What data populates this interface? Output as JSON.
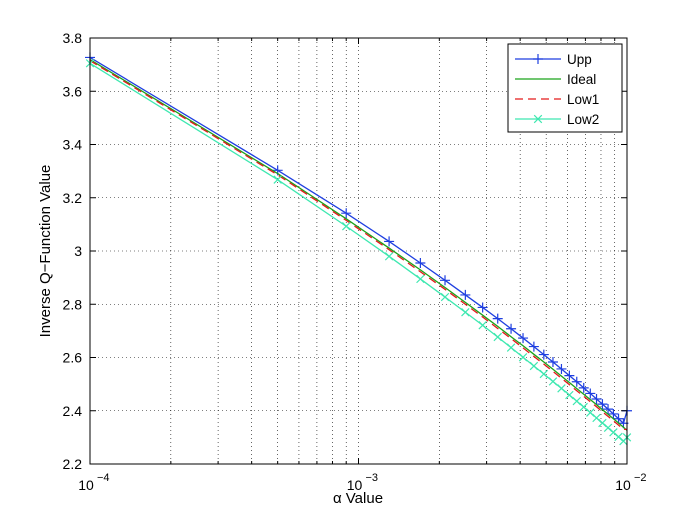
{
  "chart_data": {
    "type": "line",
    "xlabel": "α Value",
    "ylabel": "Inverse Q−Function Value",
    "x_scale": "log",
    "xlim": [
      0.0001,
      0.01
    ],
    "ylim": [
      2.2,
      3.8
    ],
    "grid": true,
    "legend_position": "top-right",
    "x_ticks": [
      {
        "value": 0.0001,
        "base": "10",
        "exp": "−4"
      },
      {
        "value": 0.001,
        "base": "10",
        "exp": "−3"
      },
      {
        "value": 0.01,
        "base": "10",
        "exp": "−2"
      }
    ],
    "y_ticks": [
      {
        "value": 2.2,
        "label": "2.2"
      },
      {
        "value": 2.4,
        "label": "2.4"
      },
      {
        "value": 2.6,
        "label": "2.6"
      },
      {
        "value": 2.8,
        "label": "2.8"
      },
      {
        "value": 3.0,
        "label": "3"
      },
      {
        "value": 3.2,
        "label": "3.2"
      },
      {
        "value": 3.4,
        "label": "3.4"
      },
      {
        "value": 3.6,
        "label": "3.6"
      },
      {
        "value": 3.8,
        "label": "3.8"
      }
    ],
    "series": [
      {
        "name": "Upp",
        "color": "#1f3fe0",
        "line_style": "solid",
        "marker": "plus",
        "x": [
          0.0001,
          0.0005,
          0.0009,
          0.0013,
          0.0017,
          0.0021,
          0.0025,
          0.0029,
          0.0033,
          0.0037,
          0.0041,
          0.0045,
          0.0049,
          0.0053,
          0.0057,
          0.0061,
          0.0065,
          0.0069,
          0.0073,
          0.0077,
          0.0081,
          0.0085,
          0.0089,
          0.0093,
          0.0097,
          0.01
        ],
        "y": [
          3.727,
          3.303,
          3.142,
          3.036,
          2.955,
          2.89,
          2.835,
          2.788,
          2.746,
          2.708,
          2.673,
          2.641,
          2.611,
          2.583,
          2.557,
          2.532,
          2.509,
          2.486,
          2.465,
          2.444,
          2.425,
          2.406,
          2.388,
          2.37,
          2.353,
          2.4
        ]
      },
      {
        "name": "Ideal",
        "color": "#1aa31a",
        "line_style": "solid",
        "marker": "none",
        "x": [
          0.0001,
          0.0005,
          0.0009,
          0.0013,
          0.0017,
          0.0021,
          0.0025,
          0.0029,
          0.0033,
          0.0037,
          0.0041,
          0.0045,
          0.0049,
          0.0053,
          0.0057,
          0.0061,
          0.0065,
          0.0069,
          0.0073,
          0.0077,
          0.0081,
          0.0085,
          0.0089,
          0.0093,
          0.0097,
          0.01
        ],
        "y": [
          3.719,
          3.291,
          3.121,
          3.011,
          2.929,
          2.863,
          2.807,
          2.759,
          2.717,
          2.678,
          2.644,
          2.612,
          2.583,
          2.556,
          2.53,
          2.506,
          2.483,
          2.462,
          2.442,
          2.423,
          2.404,
          2.387,
          2.37,
          2.354,
          2.338,
          2.326
        ]
      },
      {
        "name": "Low1",
        "color": "#e41a1a",
        "line_style": "dashed",
        "marker": "none",
        "x": [
          0.0001,
          0.0005,
          0.0009,
          0.0013,
          0.0017,
          0.0021,
          0.0025,
          0.0029,
          0.0033,
          0.0037,
          0.0041,
          0.0045,
          0.0049,
          0.0053,
          0.0057,
          0.0061,
          0.0065,
          0.0069,
          0.0073,
          0.0077,
          0.0081,
          0.0085,
          0.0089,
          0.0093,
          0.0097,
          0.01
        ],
        "y": [
          3.715,
          3.286,
          3.115,
          3.005,
          2.922,
          2.856,
          2.8,
          2.752,
          2.709,
          2.671,
          2.636,
          2.604,
          2.575,
          2.548,
          2.522,
          2.498,
          2.475,
          2.454,
          2.434,
          2.415,
          2.396,
          2.379,
          2.362,
          2.346,
          2.33,
          2.33
        ]
      },
      {
        "name": "Low2",
        "color": "#3ee8b0",
        "line_style": "solid",
        "marker": "x",
        "x": [
          0.0001,
          0.0005,
          0.0009,
          0.0013,
          0.0017,
          0.0021,
          0.0025,
          0.0029,
          0.0033,
          0.0037,
          0.0041,
          0.0045,
          0.0049,
          0.0053,
          0.0057,
          0.0061,
          0.0065,
          0.0069,
          0.0073,
          0.0077,
          0.0081,
          0.0085,
          0.0089,
          0.0093,
          0.0097,
          0.01
        ],
        "y": [
          3.705,
          3.268,
          3.093,
          2.98,
          2.895,
          2.827,
          2.77,
          2.721,
          2.677,
          2.637,
          2.601,
          2.568,
          2.538,
          2.51,
          2.484,
          2.459,
          2.436,
          2.414,
          2.393,
          2.373,
          2.354,
          2.336,
          2.319,
          2.302,
          2.286,
          2.3
        ]
      }
    ]
  }
}
